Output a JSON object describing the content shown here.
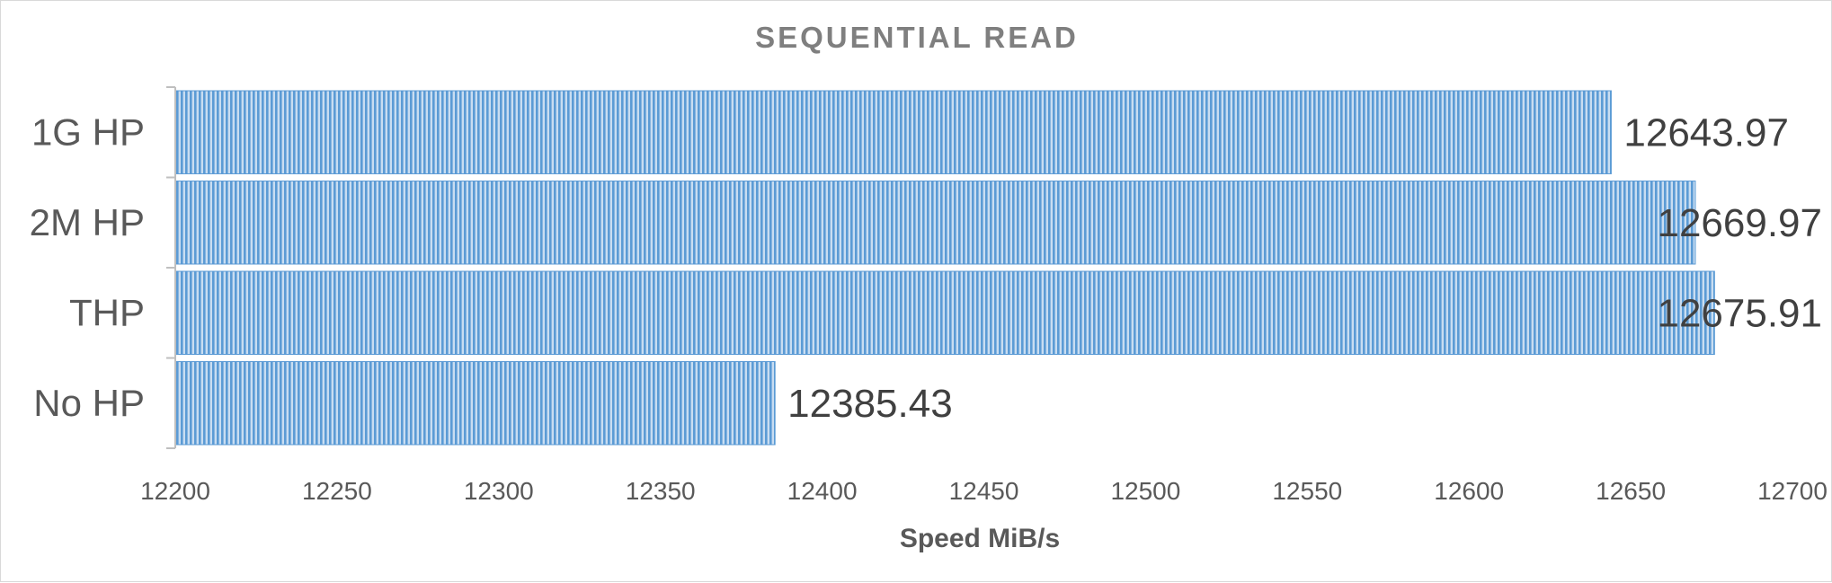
{
  "chart_data": {
    "type": "bar",
    "orientation": "horizontal",
    "title": "SEQUENTIAL READ",
    "xlabel": "Speed MiB/s",
    "ylabel": "",
    "categories": [
      "1G HP",
      "2M HP",
      "THP",
      "No HP"
    ],
    "values": [
      12643.97,
      12669.97,
      12675.91,
      12385.43
    ],
    "data_labels": [
      "12643.97",
      "12669.97",
      "12675.91",
      "12385.43"
    ],
    "xlim": [
      12200,
      12700
    ],
    "xticks": [
      12200,
      12250,
      12300,
      12350,
      12400,
      12450,
      12500,
      12550,
      12600,
      12650,
      12700
    ],
    "grid": false,
    "legend": "none",
    "bar_color": "#5b9bd5",
    "bar_pattern": "vertical-stripes"
  }
}
